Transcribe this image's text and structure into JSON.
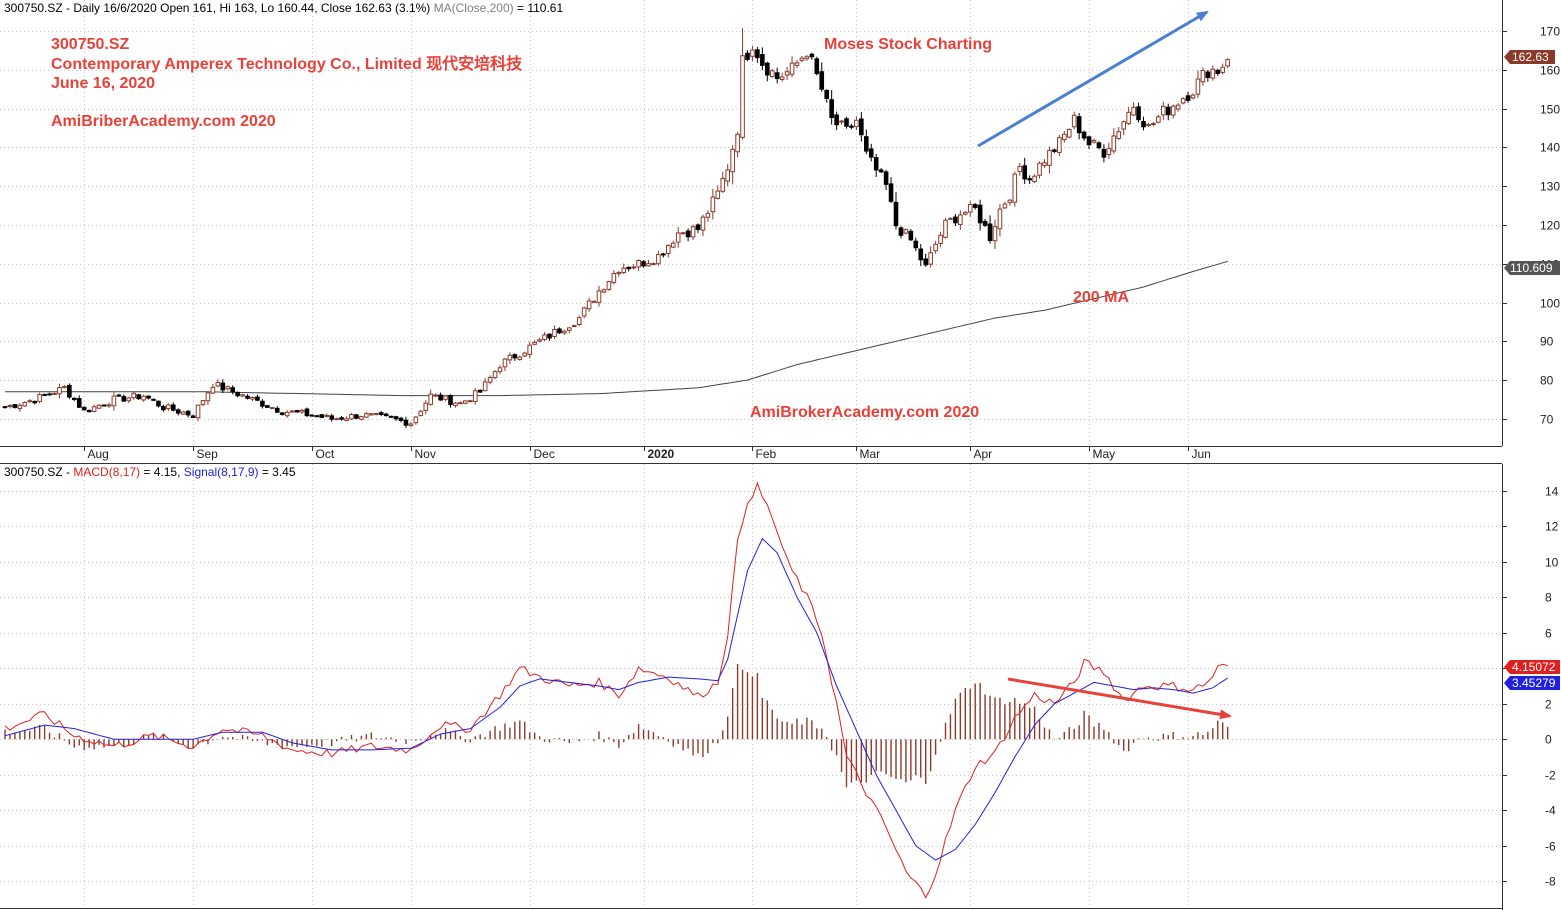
{
  "price_panel": {
    "header": {
      "symbol": "300750.SZ",
      "info": " - Daily 16/6/2020 Open 161, Hi 163, Lo 160.44, Close 162.63 (3.1%) ",
      "ma_label": "MA(Close,200)",
      "ma_value": " = 110.61"
    },
    "annotations": {
      "line1": "300750.SZ",
      "line2": "Contemporary Amperex Technology Co., Limited 现代安培科技",
      "line3": "June 16, 2020",
      "line4": "AmiBriberAcademy.com  2020",
      "moses": "Moses Stock Charting",
      "ma200": "200 MA",
      "watermark": "AmiBrokerAcademy.com  2020"
    },
    "badges": {
      "close": "162.63",
      "ma": "110.609"
    }
  },
  "macd_panel": {
    "header": {
      "symbol": "300750.SZ",
      "sep1": " - ",
      "macd_label": "MACD(8,17)",
      "macd_value": " = 4.15, ",
      "signal_label": "Signal(8,17,9)",
      "signal_value": " = 3.45"
    },
    "badges": {
      "macd": "4.15072",
      "signal": "3.45279"
    }
  },
  "colors": {
    "up_candle": "#8b3a2a",
    "down_candle": "#000000",
    "ma_line": "#444444",
    "macd_line": "#e02020",
    "signal_line": "#2020e0",
    "histogram": "#8b3a2a",
    "annotation": "#e8413a",
    "up_arrow": "#4a7fd4",
    "down_arrow": "#e8413a",
    "badge_close": "#8b3a2a",
    "badge_ma": "#333333",
    "badge_macd": "#e02020",
    "badge_signal": "#2020e0"
  },
  "chart_data": [
    {
      "type": "candlestick",
      "title": "300750.SZ - Daily 16/6/2020",
      "xlabel": "",
      "ylabel": "",
      "ylim": [
        63,
        178
      ],
      "yticks": [
        70,
        80,
        90,
        100,
        110,
        120,
        130,
        140,
        150,
        160,
        170
      ],
      "x_tick_labels": [
        "Aug",
        "Sep",
        "Oct",
        "Nov",
        "Dec",
        "2020",
        "Feb",
        "Mar",
        "Apr",
        "May",
        "Jun"
      ],
      "x_tick_positions": [
        16,
        38,
        62,
        82,
        106,
        129,
        151,
        172,
        195,
        219,
        239
      ],
      "anchors": [
        [
          0,
          73
        ],
        [
          6,
          75
        ],
        [
          12,
          78
        ],
        [
          16,
          72
        ],
        [
          22,
          75
        ],
        [
          28,
          76
        ],
        [
          32,
          73
        ],
        [
          38,
          71
        ],
        [
          42,
          79
        ],
        [
          48,
          76
        ],
        [
          56,
          72
        ],
        [
          62,
          71
        ],
        [
          66,
          70
        ],
        [
          72,
          71
        ],
        [
          78,
          70
        ],
        [
          82,
          69
        ],
        [
          86,
          76
        ],
        [
          92,
          74
        ],
        [
          96,
          77
        ],
        [
          100,
          84
        ],
        [
          104,
          87
        ],
        [
          108,
          90
        ],
        [
          112,
          93
        ],
        [
          116,
          96
        ],
        [
          120,
          103
        ],
        [
          124,
          109
        ],
        [
          128,
          110
        ],
        [
          132,
          112
        ],
        [
          136,
          118
        ],
        [
          140,
          119
        ],
        [
          144,
          128
        ],
        [
          146,
          135
        ],
        [
          148,
          145
        ],
        [
          149,
          162
        ],
        [
          151,
          167
        ],
        [
          153,
          162
        ],
        [
          156,
          158
        ],
        [
          159,
          160
        ],
        [
          162,
          165
        ],
        [
          165,
          155
        ],
        [
          167,
          147
        ],
        [
          170,
          144
        ],
        [
          172,
          147
        ],
        [
          174,
          138
        ],
        [
          176,
          134
        ],
        [
          178,
          130
        ],
        [
          180,
          120
        ],
        [
          183,
          116
        ],
        [
          186,
          109
        ],
        [
          188,
          115
        ],
        [
          190,
          120
        ],
        [
          193,
          123
        ],
        [
          196,
          124
        ],
        [
          199,
          117
        ],
        [
          201,
          124
        ],
        [
          203,
          128
        ],
        [
          205,
          135
        ],
        [
          207,
          132
        ],
        [
          210,
          137
        ],
        [
          213,
          141
        ],
        [
          216,
          147
        ],
        [
          219,
          141
        ],
        [
          222,
          139
        ],
        [
          225,
          145
        ],
        [
          228,
          151
        ],
        [
          231,
          145
        ],
        [
          234,
          149
        ],
        [
          237,
          152
        ],
        [
          240,
          155
        ],
        [
          243,
          160
        ],
        [
          245,
          160
        ],
        [
          247,
          162.63
        ]
      ],
      "ma200_anchors": [
        [
          0,
          77
        ],
        [
          40,
          77
        ],
        [
          80,
          76
        ],
        [
          100,
          76
        ],
        [
          120,
          76.5
        ],
        [
          140,
          78
        ],
        [
          150,
          80
        ],
        [
          160,
          84
        ],
        [
          170,
          87
        ],
        [
          180,
          90
        ],
        [
          190,
          93
        ],
        [
          200,
          96
        ],
        [
          210,
          98
        ],
        [
          220,
          101
        ],
        [
          230,
          104
        ],
        [
          240,
          108
        ],
        [
          247,
          110.609
        ]
      ],
      "last": {
        "open": 161,
        "high": 163,
        "low": 160.44,
        "close": 162.63,
        "change_pct": 3.1,
        "ma200": 110.609
      }
    },
    {
      "type": "line",
      "title": "MACD(8,17) / Signal(8,17,9)",
      "ylim": [
        -9.5,
        15.5
      ],
      "yticks": [
        -8,
        -6,
        -4,
        -2,
        0,
        2,
        4,
        6,
        8,
        10,
        12,
        14
      ],
      "series": [
        {
          "name": "MACD(8,17)",
          "anchors": [
            [
              0,
              0.6
            ],
            [
              8,
              1.4
            ],
            [
              14,
              0.2
            ],
            [
              22,
              -0.4
            ],
            [
              30,
              0.2
            ],
            [
              38,
              -0.4
            ],
            [
              44,
              0.6
            ],
            [
              52,
              0.2
            ],
            [
              58,
              -0.6
            ],
            [
              66,
              -0.8
            ],
            [
              74,
              -0.4
            ],
            [
              82,
              -0.6
            ],
            [
              88,
              0.8
            ],
            [
              94,
              0.6
            ],
            [
              100,
              2.5
            ],
            [
              104,
              4.0
            ],
            [
              108,
              3.5
            ],
            [
              114,
              3.0
            ],
            [
              120,
              3.2
            ],
            [
              124,
              2.5
            ],
            [
              128,
              4.0
            ],
            [
              134,
              3.5
            ],
            [
              140,
              2.4
            ],
            [
              144,
              3.2
            ],
            [
              146,
              6.0
            ],
            [
              148,
              11.0
            ],
            [
              150,
              13.5
            ],
            [
              152,
              14.2
            ],
            [
              155,
              12.5
            ],
            [
              158,
              10.0
            ],
            [
              162,
              8.0
            ],
            [
              165,
              6.0
            ],
            [
              168,
              2.0
            ],
            [
              170,
              -1.0
            ],
            [
              174,
              -3.0
            ],
            [
              178,
              -5.0
            ],
            [
              182,
              -7.5
            ],
            [
              186,
              -8.8
            ],
            [
              188,
              -7.5
            ],
            [
              192,
              -4.0
            ],
            [
              196,
              -1.5
            ],
            [
              200,
              -0.8
            ],
            [
              204,
              1.2
            ],
            [
              208,
              2.5
            ],
            [
              212,
              2.0
            ],
            [
              216,
              3.2
            ],
            [
              218,
              4.3
            ],
            [
              222,
              3.8
            ],
            [
              226,
              2.2
            ],
            [
              230,
              3.0
            ],
            [
              236,
              3.0
            ],
            [
              240,
              2.8
            ],
            [
              243,
              3.2
            ],
            [
              245,
              4.0
            ],
            [
              247,
              4.15
            ]
          ]
        },
        {
          "name": "Signal(8,17,9)",
          "anchors": [
            [
              0,
              0.2
            ],
            [
              8,
              0.8
            ],
            [
              14,
              0.6
            ],
            [
              22,
              0.0
            ],
            [
              30,
              0.0
            ],
            [
              38,
              0.0
            ],
            [
              44,
              0.4
            ],
            [
              52,
              0.4
            ],
            [
              58,
              -0.2
            ],
            [
              66,
              -0.6
            ],
            [
              74,
              -0.6
            ],
            [
              82,
              -0.5
            ],
            [
              88,
              0.3
            ],
            [
              94,
              0.6
            ],
            [
              100,
              1.8
            ],
            [
              104,
              3.0
            ],
            [
              108,
              3.4
            ],
            [
              114,
              3.2
            ],
            [
              120,
              3.0
            ],
            [
              124,
              2.8
            ],
            [
              128,
              3.2
            ],
            [
              134,
              3.5
            ],
            [
              140,
              3.4
            ],
            [
              144,
              3.3
            ],
            [
              146,
              4.5
            ],
            [
              148,
              7.0
            ],
            [
              150,
              9.5
            ],
            [
              153,
              11.3
            ],
            [
              156,
              10.5
            ],
            [
              160,
              8.0
            ],
            [
              164,
              6.0
            ],
            [
              168,
              3.0
            ],
            [
              172,
              0.5
            ],
            [
              176,
              -2.0
            ],
            [
              180,
              -4.0
            ],
            [
              184,
              -6.0
            ],
            [
              188,
              -6.8
            ],
            [
              192,
              -6.2
            ],
            [
              196,
              -4.8
            ],
            [
              200,
              -3.0
            ],
            [
              204,
              -1.0
            ],
            [
              208,
              0.8
            ],
            [
              212,
              2.0
            ],
            [
              216,
              2.6
            ],
            [
              220,
              3.2
            ],
            [
              224,
              3.0
            ],
            [
              228,
              2.8
            ],
            [
              232,
              2.9
            ],
            [
              236,
              2.8
            ],
            [
              240,
              2.6
            ],
            [
              244,
              2.9
            ],
            [
              247,
              3.45
            ]
          ]
        }
      ],
      "last": {
        "macd": 4.15072,
        "signal": 3.45279
      }
    }
  ]
}
